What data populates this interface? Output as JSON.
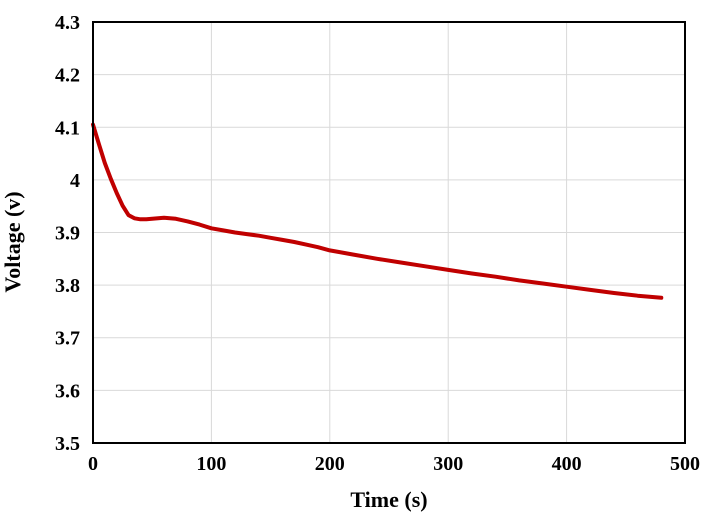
{
  "chart_data": {
    "type": "line",
    "title": "",
    "xlabel": "Time (s)",
    "ylabel": "Voltage (v)",
    "xlim": [
      0,
      500
    ],
    "ylim": [
      3.5,
      4.3
    ],
    "x_ticks": [
      0,
      100,
      200,
      300,
      400,
      500
    ],
    "y_ticks": [
      3.5,
      3.6,
      3.7,
      3.8,
      3.9,
      4,
      4.1,
      4.2,
      4.3
    ],
    "grid": true,
    "legend": "none",
    "colors": {
      "line": "#C00000",
      "gridline": "#D9D9D9",
      "axis_border": "#000000",
      "text": "#000000",
      "background": "#FFFFFF"
    },
    "series": [
      {
        "color": "#C00000",
        "x": [
          0,
          5,
          10,
          15,
          20,
          25,
          30,
          35,
          40,
          45,
          50,
          55,
          60,
          70,
          80,
          90,
          100,
          110,
          120,
          130,
          140,
          150,
          160,
          170,
          180,
          190,
          200,
          220,
          240,
          260,
          280,
          300,
          320,
          340,
          360,
          380,
          400,
          420,
          440,
          460,
          480
        ],
        "y": [
          4.105,
          4.068,
          4.032,
          4.002,
          3.975,
          3.951,
          3.933,
          3.927,
          3.925,
          3.925,
          3.926,
          3.927,
          3.928,
          3.926,
          3.921,
          3.915,
          3.908,
          3.904,
          3.9,
          3.897,
          3.894,
          3.89,
          3.886,
          3.882,
          3.877,
          3.872,
          3.866,
          3.858,
          3.85,
          3.843,
          3.836,
          3.829,
          3.822,
          3.816,
          3.809,
          3.803,
          3.797,
          3.791,
          3.785,
          3.78,
          3.776
        ]
      }
    ]
  }
}
